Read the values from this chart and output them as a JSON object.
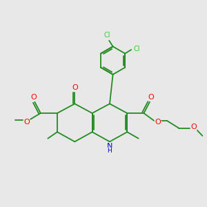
{
  "bg_color": "#e8e8e8",
  "bond_color": "#228B22",
  "O_color": "#FF0000",
  "N_color": "#0000CD",
  "Cl_color": "#32CD32",
  "bond_lw": 1.3,
  "figsize": [
    3.0,
    3.0
  ],
  "dpi": 100,
  "xlim": [
    -3.2,
    4.5
  ],
  "ylim": [
    -0.8,
    6.2
  ]
}
